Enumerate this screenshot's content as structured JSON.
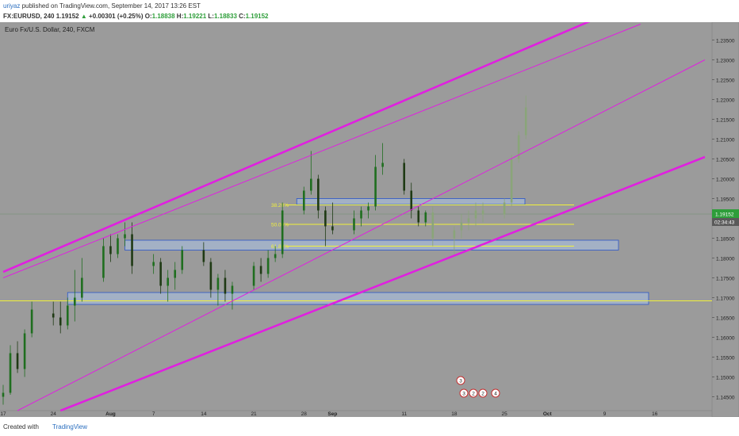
{
  "header": {
    "author": "uriyaz",
    "published": "published on TradingView.com, September 14, 2017 13:26 EST",
    "symbol": "FX:EURUSD, 240",
    "last": "1.19152",
    "change": "+0.00301 (+0.25%)",
    "o_label": "O:",
    "o": "1.18838",
    "h_label": "H:",
    "h": "1.19221",
    "l_label": "L:",
    "l": "1.18833",
    "c_label": "C:",
    "c": "1.19152"
  },
  "colors": {
    "background": "#9b9b9b",
    "axis_bg": "#9b9b9b",
    "up": "#1f6e1f",
    "down": "#1f3a14",
    "projection": "#8aa579",
    "channel": "#e020e0",
    "fib": "#f1f13a",
    "zone_fill": "#a9c2e8",
    "zone_border": "#2a55c8",
    "price_tag": "#2e9e3a"
  },
  "footer": {
    "created_with": "Created with",
    "brand": "TradingView"
  },
  "chart_data": {
    "type": "candlestick",
    "title": "Euro Fx/U.S. Dollar, 240, FXCM",
    "price_ticks": [
      "1.23500",
      "1.23000",
      "1.22500",
      "1.22000",
      "1.21500",
      "1.21000",
      "1.20500",
      "1.20000",
      "1.19500",
      "1.19000",
      "1.18500",
      "1.18000",
      "1.17500",
      "1.17000",
      "1.16500",
      "1.16000",
      "1.15500",
      "1.15000",
      "1.14500"
    ],
    "ylim": [
      1.1415,
      1.2395
    ],
    "date_ticks": [
      "17",
      "24",
      "Aug",
      "7",
      "14",
      "21",
      "28",
      "Sep",
      "11",
      "18",
      "25",
      "Oct",
      "9",
      "16"
    ],
    "last_price": "1.19152",
    "countdown": "02:34:43",
    "fib_levels": [
      {
        "label": "38.20%",
        "price": 1.1934
      },
      {
        "label": "50.00%",
        "price": 1.1885
      },
      {
        "label": "61.80%",
        "price": 1.183
      }
    ],
    "support_line_price": 1.1692,
    "zones": [
      {
        "from_date": "2017-07-26",
        "to_date": "2017-10-14",
        "low": 1.1683,
        "high": 1.1713
      },
      {
        "from_date": "2017-08-03",
        "to_date": "2017-10-04",
        "low": 1.182,
        "high": 1.1845
      },
      {
        "from_date": "2017-08-27",
        "to_date": "2017-09-26",
        "low": 1.1935,
        "high": 1.195
      }
    ],
    "channel_lines": [
      {
        "style": "thick",
        "from": [
          "2017-07-17",
          1.1765
        ],
        "to": [
          "2017-10-07",
          1.2398
        ]
      },
      {
        "style": "thin",
        "from": [
          "2017-07-17",
          1.175
        ],
        "to": [
          "2017-10-14",
          1.239
        ]
      },
      {
        "style": "thin",
        "from": [
          "2017-07-19",
          1.1415
        ],
        "to": [
          "2017-10-23",
          1.23
        ]
      },
      {
        "style": "thick",
        "from": [
          "2017-07-25",
          1.1415
        ],
        "to": [
          "2017-10-23",
          1.2055
        ]
      }
    ],
    "events": [
      {
        "date": "2017-09-15",
        "label": "3"
      },
      {
        "date": "2017-09-15",
        "label": "3"
      },
      {
        "date": "2017-09-17",
        "label": "2"
      },
      {
        "date": "2017-09-19",
        "label": "2"
      },
      {
        "date": "2017-09-22",
        "label": "4"
      }
    ],
    "candles": [
      {
        "date": "2017-07-17",
        "open": 1.145,
        "high": 1.148,
        "low": 1.143,
        "close": 1.146
      },
      {
        "date": "2017-07-18",
        "open": 1.146,
        "high": 1.158,
        "low": 1.1455,
        "close": 1.156
      },
      {
        "date": "2017-07-19",
        "open": 1.156,
        "high": 1.159,
        "low": 1.151,
        "close": 1.152
      },
      {
        "date": "2017-07-20",
        "open": 1.152,
        "high": 1.162,
        "low": 1.15,
        "close": 1.161
      },
      {
        "date": "2017-07-21",
        "open": 1.161,
        "high": 1.169,
        "low": 1.16,
        "close": 1.167
      },
      {
        "date": "2017-07-24",
        "open": 1.166,
        "high": 1.169,
        "low": 1.163,
        "close": 1.165
      },
      {
        "date": "2017-07-25",
        "open": 1.165,
        "high": 1.169,
        "low": 1.161,
        "close": 1.163
      },
      {
        "date": "2017-07-26",
        "open": 1.163,
        "high": 1.17,
        "low": 1.162,
        "close": 1.168
      },
      {
        "date": "2017-07-27",
        "open": 1.168,
        "high": 1.177,
        "low": 1.164,
        "close": 1.17
      },
      {
        "date": "2017-07-28",
        "open": 1.17,
        "high": 1.18,
        "low": 1.169,
        "close": 1.175
      },
      {
        "date": "2017-07-31",
        "open": 1.175,
        "high": 1.185,
        "low": 1.174,
        "close": 1.183
      },
      {
        "date": "2017-08-01",
        "open": 1.183,
        "high": 1.186,
        "low": 1.179,
        "close": 1.181
      },
      {
        "date": "2017-08-02",
        "open": 1.181,
        "high": 1.186,
        "low": 1.18,
        "close": 1.185
      },
      {
        "date": "2017-08-03",
        "open": 1.185,
        "high": 1.189,
        "low": 1.183,
        "close": 1.186
      },
      {
        "date": "2017-08-04",
        "open": 1.186,
        "high": 1.189,
        "low": 1.176,
        "close": 1.178
      },
      {
        "date": "2017-08-07",
        "open": 1.178,
        "high": 1.181,
        "low": 1.176,
        "close": 1.179
      },
      {
        "date": "2017-08-08",
        "open": 1.179,
        "high": 1.18,
        "low": 1.171,
        "close": 1.173
      },
      {
        "date": "2017-08-09",
        "open": 1.173,
        "high": 1.177,
        "low": 1.169,
        "close": 1.175
      },
      {
        "date": "2017-08-10",
        "open": 1.175,
        "high": 1.179,
        "low": 1.172,
        "close": 1.177
      },
      {
        "date": "2017-08-11",
        "open": 1.177,
        "high": 1.183,
        "low": 1.176,
        "close": 1.182
      },
      {
        "date": "2017-08-14",
        "open": 1.182,
        "high": 1.184,
        "low": 1.178,
        "close": 1.179
      },
      {
        "date": "2017-08-15",
        "open": 1.179,
        "high": 1.18,
        "low": 1.17,
        "close": 1.172
      },
      {
        "date": "2017-08-16",
        "open": 1.172,
        "high": 1.176,
        "low": 1.168,
        "close": 1.175
      },
      {
        "date": "2017-08-17",
        "open": 1.175,
        "high": 1.177,
        "low": 1.169,
        "close": 1.171
      },
      {
        "date": "2017-08-18",
        "open": 1.171,
        "high": 1.174,
        "low": 1.167,
        "close": 1.173
      },
      {
        "date": "2017-08-21",
        "open": 1.173,
        "high": 1.179,
        "low": 1.172,
        "close": 1.178
      },
      {
        "date": "2017-08-22",
        "open": 1.178,
        "high": 1.18,
        "low": 1.174,
        "close": 1.176
      },
      {
        "date": "2017-08-23",
        "open": 1.176,
        "high": 1.182,
        "low": 1.175,
        "close": 1.18
      },
      {
        "date": "2017-08-24",
        "open": 1.18,
        "high": 1.183,
        "low": 1.179,
        "close": 1.181
      },
      {
        "date": "2017-08-25",
        "open": 1.181,
        "high": 1.194,
        "low": 1.18,
        "close": 1.192
      },
      {
        "date": "2017-08-28",
        "open": 1.192,
        "high": 1.198,
        "low": 1.191,
        "close": 1.197
      },
      {
        "date": "2017-08-29",
        "open": 1.197,
        "high": 1.207,
        "low": 1.196,
        "close": 1.2
      },
      {
        "date": "2017-08-30",
        "open": 1.2,
        "high": 1.201,
        "low": 1.19,
        "close": 1.192
      },
      {
        "date": "2017-08-31",
        "open": 1.192,
        "high": 1.193,
        "low": 1.183,
        "close": 1.188
      },
      {
        "date": "2017-09-01",
        "open": 1.188,
        "high": 1.194,
        "low": 1.186,
        "close": 1.187
      },
      {
        "date": "2017-09-04",
        "open": 1.187,
        "high": 1.192,
        "low": 1.186,
        "close": 1.19
      },
      {
        "date": "2017-09-05",
        "open": 1.19,
        "high": 1.193,
        "low": 1.188,
        "close": 1.192
      },
      {
        "date": "2017-09-06",
        "open": 1.192,
        "high": 1.194,
        "low": 1.19,
        "close": 1.193
      },
      {
        "date": "2017-09-07",
        "open": 1.193,
        "high": 1.206,
        "low": 1.192,
        "close": 1.203
      },
      {
        "date": "2017-09-08",
        "open": 1.203,
        "high": 1.209,
        "low": 1.201,
        "close": 1.204
      },
      {
        "date": "2017-09-11",
        "open": 1.204,
        "high": 1.205,
        "low": 1.196,
        "close": 1.197
      },
      {
        "date": "2017-09-12",
        "open": 1.197,
        "high": 1.199,
        "low": 1.19,
        "close": 1.192
      },
      {
        "date": "2017-09-13",
        "open": 1.192,
        "high": 1.193,
        "low": 1.188,
        "close": 1.189
      },
      {
        "date": "2017-09-14",
        "open": 1.189,
        "high": 1.192,
        "low": 1.188,
        "close": 1.1915
      }
    ],
    "projection": [
      {
        "date": "2017-09-15",
        "open": 1.1915,
        "high": 1.193,
        "low": 1.183,
        "close": 1.185
      },
      {
        "date": "2017-09-18",
        "open": 1.185,
        "high": 1.188,
        "low": 1.181,
        "close": 1.187
      },
      {
        "date": "2017-09-19",
        "open": 1.187,
        "high": 1.191,
        "low": 1.185,
        "close": 1.189
      },
      {
        "date": "2017-09-20",
        "open": 1.189,
        "high": 1.192,
        "low": 1.187,
        "close": 1.19
      },
      {
        "date": "2017-09-21",
        "open": 1.19,
        "high": 1.194,
        "low": 1.188,
        "close": 1.192
      },
      {
        "date": "2017-09-22",
        "open": 1.192,
        "high": 1.194,
        "low": 1.189,
        "close": 1.191
      },
      {
        "date": "2017-09-25",
        "open": 1.191,
        "high": 1.195,
        "low": 1.19,
        "close": 1.194
      },
      {
        "date": "2017-09-26",
        "open": 1.194,
        "high": 1.206,
        "low": 1.193,
        "close": 1.205
      },
      {
        "date": "2017-09-27",
        "open": 1.205,
        "high": 1.212,
        "low": 1.204,
        "close": 1.211
      },
      {
        "date": "2017-09-28",
        "open": 1.211,
        "high": 1.221,
        "low": 1.21,
        "close": 1.218
      }
    ]
  }
}
